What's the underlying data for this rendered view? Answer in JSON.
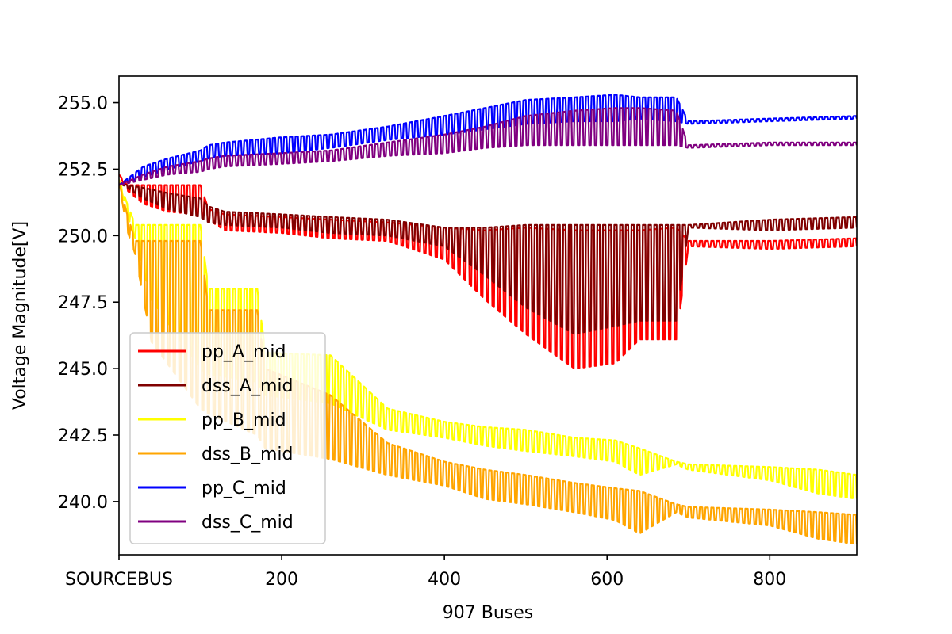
{
  "chart_data": {
    "type": "line",
    "title": "",
    "xlabel": "907 Buses",
    "ylabel": "Voltage Magnitude[V]",
    "xlim": [
      0,
      907
    ],
    "ylim": [
      238.0,
      256.0
    ],
    "x_ticks": [
      {
        "value": 0,
        "label": "SOURCEBUS"
      },
      {
        "value": 200,
        "label": "200"
      },
      {
        "value": 400,
        "label": "400"
      },
      {
        "value": 600,
        "label": "600"
      },
      {
        "value": 800,
        "label": "800"
      }
    ],
    "y_ticks": [
      {
        "value": 240.0,
        "label": "240.0"
      },
      {
        "value": 242.5,
        "label": "242.5"
      },
      {
        "value": 245.0,
        "label": "245.0"
      },
      {
        "value": 247.5,
        "label": "247.5"
      },
      {
        "value": 250.0,
        "label": "250.0"
      },
      {
        "value": 252.5,
        "label": "252.5"
      },
      {
        "value": 255.0,
        "label": "255.0"
      }
    ],
    "grid": false,
    "legend_position": "lower-left",
    "series": [
      {
        "name": "pp_A_mid",
        "color": "#ff0000",
        "x": [
          0,
          10,
          30,
          60,
          100,
          110,
          130,
          200,
          260,
          330,
          400,
          450,
          500,
          560,
          610,
          640,
          685,
          700,
          800,
          907
        ],
        "high": [
          252.3,
          251.9,
          251.9,
          251.9,
          251.9,
          251.0,
          250.8,
          250.7,
          250.6,
          250.5,
          250.3,
          250.2,
          250.3,
          250.2,
          250.2,
          250.2,
          250.3,
          249.8,
          249.8,
          249.9
        ],
        "low": [
          252.3,
          251.7,
          251.2,
          250.9,
          250.8,
          250.6,
          250.2,
          250.1,
          249.9,
          249.8,
          249.1,
          247.6,
          246.3,
          245.0,
          245.2,
          246.1,
          246.1,
          249.6,
          249.5,
          249.6
        ]
      },
      {
        "name": "dss_A_mid",
        "color": "#800000",
        "x": [
          0,
          10,
          30,
          60,
          100,
          110,
          130,
          200,
          260,
          330,
          400,
          450,
          500,
          560,
          610,
          640,
          685,
          700,
          800,
          907
        ],
        "high": [
          252.0,
          251.9,
          251.8,
          251.6,
          251.4,
          251.1,
          250.9,
          250.8,
          250.7,
          250.6,
          250.3,
          250.3,
          250.4,
          250.4,
          250.4,
          250.4,
          250.4,
          250.4,
          250.6,
          250.7
        ],
        "low": [
          252.0,
          251.8,
          251.4,
          251.0,
          250.7,
          250.5,
          250.4,
          250.3,
          250.1,
          250.0,
          249.6,
          248.5,
          247.3,
          246.3,
          246.6,
          246.8,
          246.8,
          250.3,
          250.2,
          250.3
        ]
      },
      {
        "name": "pp_B_mid",
        "color": "#ffff00",
        "x": [
          0,
          10,
          20,
          40,
          100,
          110,
          170,
          180,
          260,
          330,
          400,
          450,
          500,
          560,
          610,
          640,
          685,
          700,
          800,
          860,
          907
        ],
        "high": [
          252.1,
          251.2,
          250.4,
          250.4,
          250.4,
          248.0,
          248.0,
          245.6,
          245.5,
          243.5,
          243.0,
          242.8,
          242.7,
          242.4,
          242.3,
          242.0,
          241.5,
          241.4,
          241.3,
          241.2,
          241.0
        ],
        "low": [
          252.1,
          250.8,
          249.9,
          247.6,
          245.0,
          244.8,
          244.5,
          244.0,
          243.7,
          242.7,
          242.4,
          242.1,
          241.9,
          241.7,
          241.5,
          241.0,
          241.4,
          241.2,
          240.8,
          240.3,
          240.1
        ]
      },
      {
        "name": "dss_B_mid",
        "color": "#ffa500",
        "x": [
          0,
          10,
          20,
          40,
          100,
          110,
          170,
          180,
          260,
          330,
          400,
          450,
          500,
          560,
          610,
          640,
          685,
          700,
          800,
          860,
          907
        ],
        "high": [
          252.0,
          250.8,
          249.8,
          249.8,
          249.8,
          247.2,
          247.2,
          245.0,
          244.0,
          242.2,
          241.5,
          241.2,
          241.0,
          240.7,
          240.5,
          240.4,
          239.9,
          239.8,
          239.7,
          239.6,
          239.5
        ],
        "low": [
          252.0,
          250.2,
          249.3,
          246.0,
          243.5,
          243.3,
          242.5,
          242.0,
          241.6,
          241.0,
          240.6,
          240.1,
          239.9,
          239.6,
          239.3,
          238.8,
          239.6,
          239.4,
          239.1,
          238.6,
          238.4
        ]
      },
      {
        "name": "pp_C_mid",
        "color": "#0000ff",
        "x": [
          0,
          30,
          60,
          100,
          110,
          130,
          200,
          260,
          330,
          400,
          450,
          500,
          560,
          610,
          640,
          685,
          700,
          800,
          907
        ],
        "high": [
          251.9,
          252.6,
          252.9,
          253.2,
          253.4,
          253.5,
          253.7,
          253.8,
          254.1,
          254.5,
          254.8,
          255.1,
          255.2,
          255.3,
          255.2,
          255.2,
          254.3,
          254.4,
          254.5
        ],
        "low": [
          251.9,
          252.2,
          252.5,
          252.8,
          252.9,
          253.0,
          253.1,
          253.3,
          253.6,
          253.8,
          254.0,
          254.2,
          254.3,
          254.3,
          254.4,
          254.3,
          254.2,
          254.3,
          254.4
        ]
      },
      {
        "name": "dss_C_mid",
        "color": "#800080",
        "x": [
          0,
          30,
          60,
          100,
          110,
          130,
          200,
          260,
          330,
          400,
          450,
          500,
          560,
          610,
          640,
          685,
          700,
          800,
          907
        ],
        "high": [
          251.9,
          252.3,
          252.6,
          252.8,
          252.9,
          253.0,
          253.1,
          253.2,
          253.5,
          253.8,
          254.1,
          254.5,
          254.7,
          254.8,
          254.8,
          254.7,
          253.4,
          253.5,
          253.5
        ],
        "low": [
          251.9,
          252.1,
          252.3,
          252.4,
          252.5,
          252.6,
          252.7,
          252.8,
          253.0,
          253.1,
          253.3,
          253.4,
          253.4,
          253.4,
          253.4,
          253.4,
          253.3,
          253.4,
          253.4
        ]
      }
    ]
  }
}
